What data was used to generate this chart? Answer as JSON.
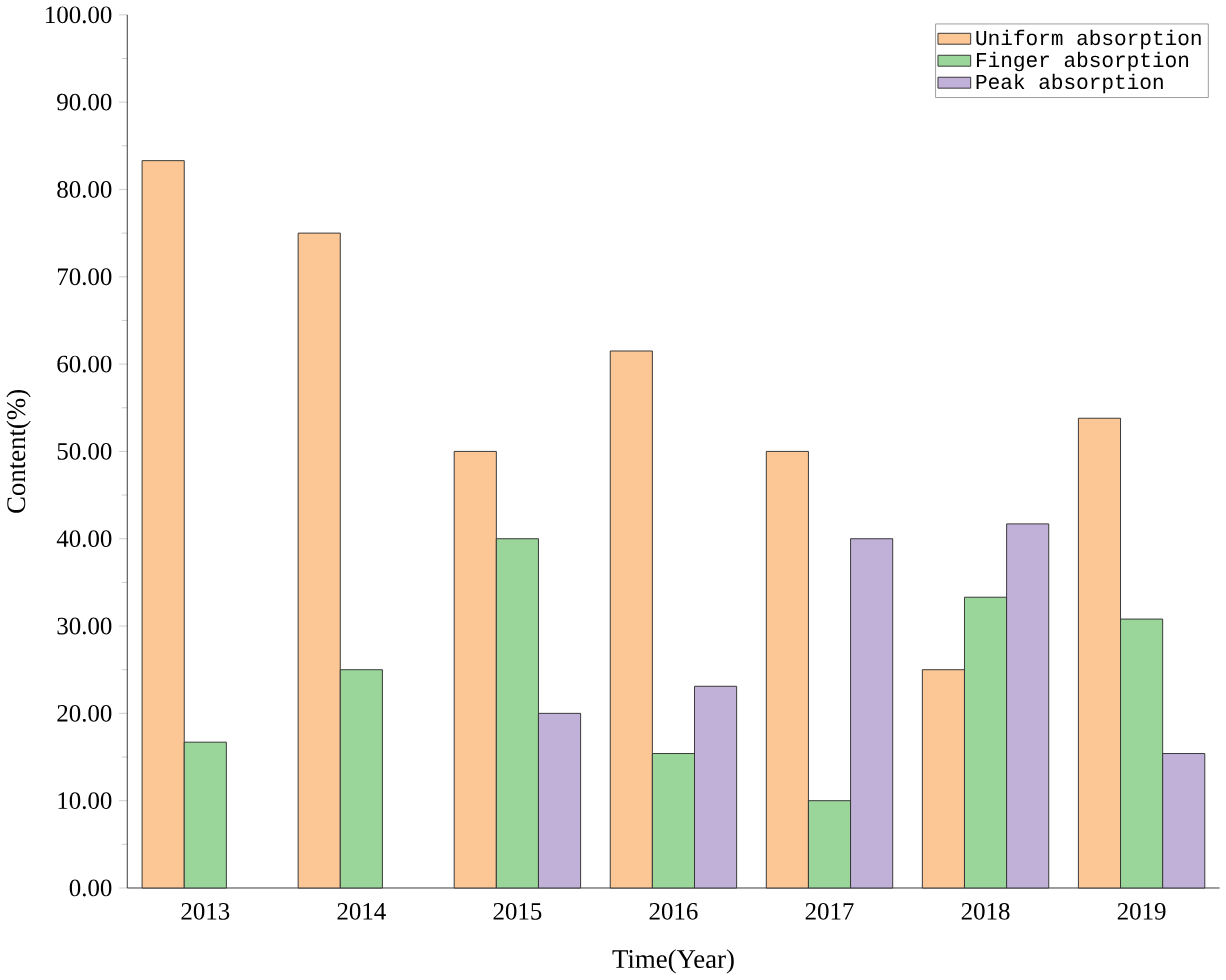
{
  "chart_data": {
    "type": "bar",
    "xlabel": "Time(Year)",
    "ylabel": "Content(%)",
    "categories": [
      "2013",
      "2014",
      "2015",
      "2016",
      "2017",
      "2018",
      "2019"
    ],
    "series": [
      {
        "name": "Uniform absorption",
        "color": "#fdc795",
        "values": [
          83.3,
          75,
          50,
          61.5,
          50,
          25,
          53.8
        ]
      },
      {
        "name": "Finger absorption",
        "color": "#9ad69a",
        "values": [
          16.7,
          25,
          40,
          15.4,
          10,
          33.3,
          30.8
        ]
      },
      {
        "name": "Peak absorption",
        "color": "#c1b1d9",
        "values": [
          null,
          null,
          20,
          23.1,
          40,
          41.7,
          15.4
        ]
      }
    ],
    "ylim": [
      0,
      100
    ],
    "yticks": [
      {
        "value": 0,
        "label": "0.00"
      },
      {
        "value": 10,
        "label": "10.00"
      },
      {
        "value": 20,
        "label": "20.00"
      },
      {
        "value": 30,
        "label": "30.00"
      },
      {
        "value": 40,
        "label": "40.00"
      },
      {
        "value": 50,
        "label": "50.00"
      },
      {
        "value": 60,
        "label": "60.00"
      },
      {
        "value": 70,
        "label": "70.00"
      },
      {
        "value": 80,
        "label": "80.00"
      },
      {
        "value": 90,
        "label": "90.00"
      },
      {
        "value": 100,
        "label": "100.00"
      }
    ],
    "legend": "top right"
  }
}
